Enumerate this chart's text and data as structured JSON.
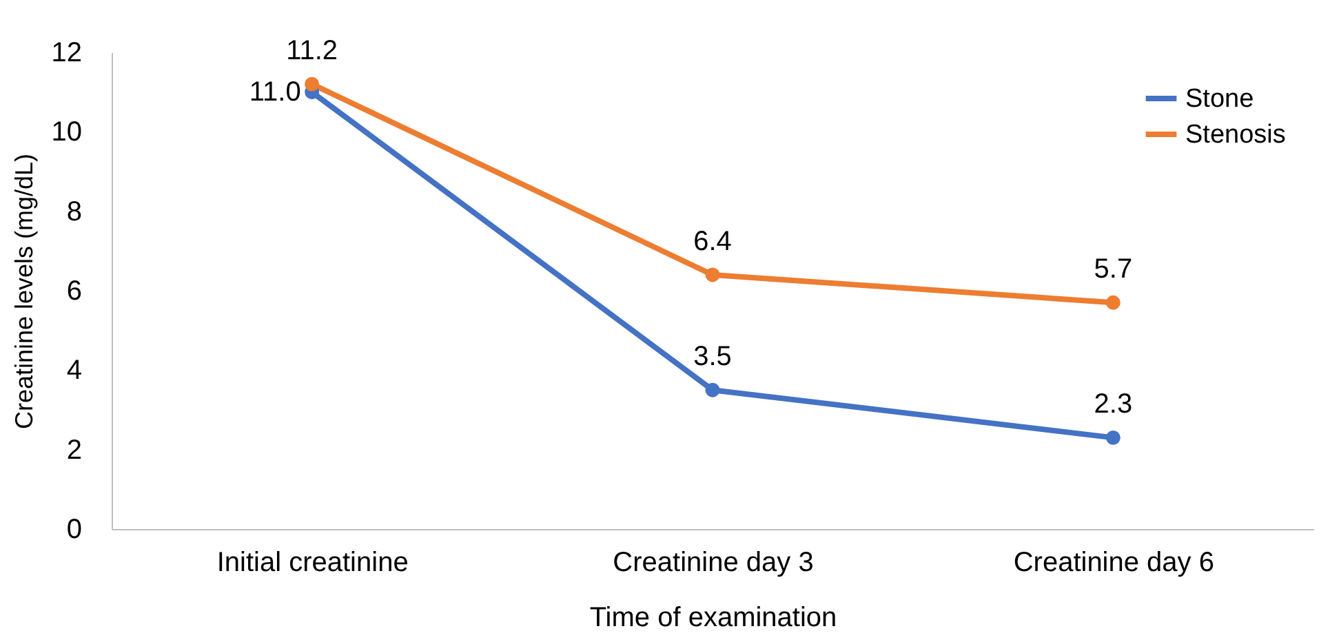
{
  "chart_data": {
    "type": "line",
    "xlabel": "Time of examination",
    "ylabel": "Creatinine levels (mg/dL)",
    "categories": [
      "Initial creatinine",
      "Creatinine day 3",
      "Creatinine day 6"
    ],
    "series": [
      {
        "name": "Stone",
        "color": "#4472c4",
        "values": [
          11.0,
          3.5,
          2.3
        ],
        "value_labels": [
          "11.0",
          "3.5",
          "2.3"
        ]
      },
      {
        "name": "Stenosis",
        "color": "#ed7d31",
        "values": [
          11.2,
          6.4,
          5.7
        ],
        "value_labels": [
          "11.2",
          "6.4",
          "5.7"
        ]
      }
    ],
    "ylim": [
      0,
      12
    ],
    "yticks": [
      0,
      2,
      4,
      6,
      8,
      10,
      12
    ],
    "grid": false,
    "legend": "top right",
    "marker": "circle",
    "line_style": "solid"
  }
}
